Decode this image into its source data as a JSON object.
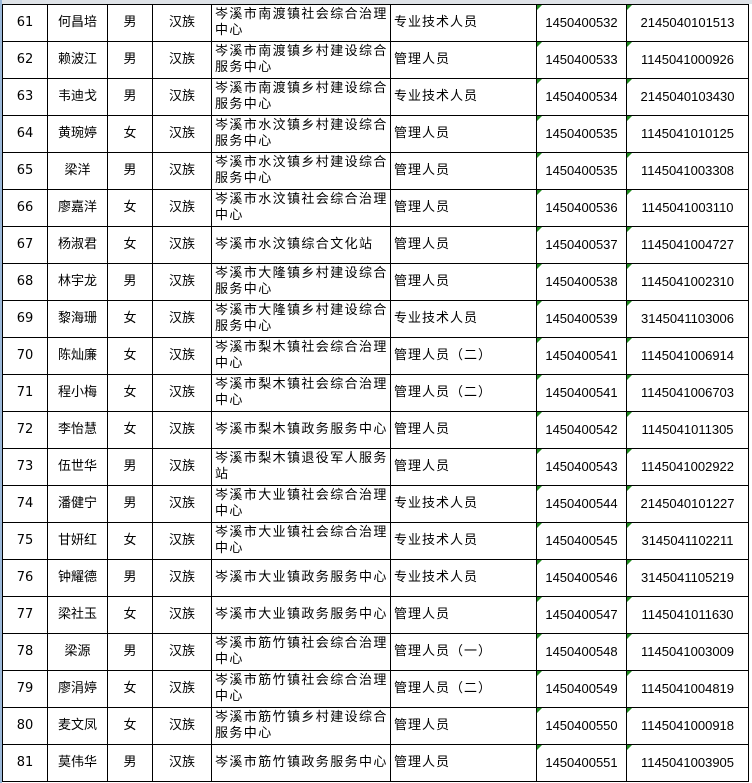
{
  "indicator_color": "#1e8a1e",
  "rows": [
    {
      "no": "61",
      "name": "何昌培",
      "gender": "男",
      "ethnicity": "汉族",
      "unit": "岑溪市南渡镇社会综合治理中心",
      "position": "专业技术人员",
      "post_code": "1450400532",
      "exam_no": "2145040101513"
    },
    {
      "no": "62",
      "name": "赖波江",
      "gender": "男",
      "ethnicity": "汉族",
      "unit": "岑溪市南渡镇乡村建设综合服务中心",
      "position": "管理人员",
      "post_code": "1450400533",
      "exam_no": "1145041000926"
    },
    {
      "no": "63",
      "name": "韦迪戈",
      "gender": "男",
      "ethnicity": "汉族",
      "unit": "岑溪市南渡镇乡村建设综合服务中心",
      "position": "专业技术人员",
      "post_code": "1450400534",
      "exam_no": "2145040103430"
    },
    {
      "no": "64",
      "name": "黄琬婷",
      "gender": "女",
      "ethnicity": "汉族",
      "unit": "岑溪市水汶镇乡村建设综合服务中心",
      "position": "管理人员",
      "post_code": "1450400535",
      "exam_no": "1145041010125"
    },
    {
      "no": "65",
      "name": "梁洋",
      "gender": "男",
      "ethnicity": "汉族",
      "unit": "岑溪市水汶镇乡村建设综合服务中心",
      "position": "管理人员",
      "post_code": "1450400535",
      "exam_no": "1145041003308"
    },
    {
      "no": "66",
      "name": "廖嘉洋",
      "gender": "女",
      "ethnicity": "汉族",
      "unit": "岑溪市水汶镇社会综合治理中心",
      "position": "管理人员",
      "post_code": "1450400536",
      "exam_no": "1145041003110"
    },
    {
      "no": "67",
      "name": "杨淑君",
      "gender": "女",
      "ethnicity": "汉族",
      "unit": "岑溪市水汶镇综合文化站",
      "position": "管理人员",
      "post_code": "1450400537",
      "exam_no": "1145041004727"
    },
    {
      "no": "68",
      "name": "林宇龙",
      "gender": "男",
      "ethnicity": "汉族",
      "unit": "岑溪市大隆镇乡村建设综合服务中心",
      "position": "管理人员",
      "post_code": "1450400538",
      "exam_no": "1145041002310"
    },
    {
      "no": "69",
      "name": "黎海珊",
      "gender": "女",
      "ethnicity": "汉族",
      "unit": "岑溪市大隆镇乡村建设综合服务中心",
      "position": "专业技术人员",
      "post_code": "1450400539",
      "exam_no": "3145041103006"
    },
    {
      "no": "70",
      "name": "陈灿廉",
      "gender": "女",
      "ethnicity": "汉族",
      "unit": "岑溪市梨木镇社会综合治理中心",
      "position": "管理人员（二）",
      "post_code": "1450400541",
      "exam_no": "1145041006914"
    },
    {
      "no": "71",
      "name": "程小梅",
      "gender": "女",
      "ethnicity": "汉族",
      "unit": "岑溪市梨木镇社会综合治理中心",
      "position": "管理人员（二）",
      "post_code": "1450400541",
      "exam_no": "1145041006703"
    },
    {
      "no": "72",
      "name": "李怡慧",
      "gender": "女",
      "ethnicity": "汉族",
      "unit": "岑溪市梨木镇政务服务中心",
      "position": "管理人员",
      "post_code": "1450400542",
      "exam_no": "1145041011305"
    },
    {
      "no": "73",
      "name": "伍世华",
      "gender": "男",
      "ethnicity": "汉族",
      "unit": "岑溪市梨木镇退役军人服务站",
      "position": "管理人员",
      "post_code": "1450400543",
      "exam_no": "1145041002922"
    },
    {
      "no": "74",
      "name": "潘健宁",
      "gender": "男",
      "ethnicity": "汉族",
      "unit": "岑溪市大业镇社会综合治理中心",
      "position": "专业技术人员",
      "post_code": "1450400544",
      "exam_no": "2145040101227"
    },
    {
      "no": "75",
      "name": "甘妍红",
      "gender": "女",
      "ethnicity": "汉族",
      "unit": "岑溪市大业镇社会综合治理中心",
      "position": "专业技术人员",
      "post_code": "1450400545",
      "exam_no": "3145041102211"
    },
    {
      "no": "76",
      "name": "钟耀德",
      "gender": "男",
      "ethnicity": "汉族",
      "unit": "岑溪市大业镇政务服务中心",
      "position": "专业技术人员",
      "post_code": "1450400546",
      "exam_no": "3145041105219"
    },
    {
      "no": "77",
      "name": "梁社玉",
      "gender": "女",
      "ethnicity": "汉族",
      "unit": "岑溪市大业镇政务服务中心",
      "position": "管理人员",
      "post_code": "1450400547",
      "exam_no": "1145041011630"
    },
    {
      "no": "78",
      "name": "梁源",
      "gender": "男",
      "ethnicity": "汉族",
      "unit": "岑溪市筋竹镇社会综合治理中心",
      "position": "管理人员（一）",
      "post_code": "1450400548",
      "exam_no": "1145041003009"
    },
    {
      "no": "79",
      "name": "廖涓婷",
      "gender": "女",
      "ethnicity": "汉族",
      "unit": "岑溪市筋竹镇社会综合治理中心",
      "position": "管理人员（二）",
      "post_code": "1450400549",
      "exam_no": "1145041004819"
    },
    {
      "no": "80",
      "name": "麦文凤",
      "gender": "女",
      "ethnicity": "汉族",
      "unit": "岑溪市筋竹镇乡村建设综合服务中心",
      "position": "管理人员",
      "post_code": "1450400550",
      "exam_no": "1145041000918"
    },
    {
      "no": "81",
      "name": "莫伟华",
      "gender": "男",
      "ethnicity": "汉族",
      "unit": "岑溪市筋竹镇政务服务中心",
      "position": "管理人员",
      "post_code": "1450400551",
      "exam_no": "1145041003905"
    }
  ]
}
